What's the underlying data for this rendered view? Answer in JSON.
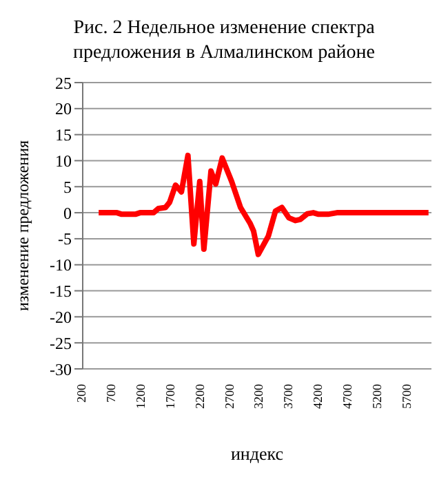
{
  "chart_data": {
    "type": "line",
    "title": "Рис. 2 Недельное изменение спектра предложения в Алмалинском районе",
    "xlabel": "индекс",
    "ylabel": "изменение предложения",
    "x": [
      470,
      780,
      860,
      1090,
      1170,
      1400,
      1480,
      1600,
      1670,
      1770,
      1870,
      1980,
      2080,
      2180,
      2250,
      2370,
      2450,
      2560,
      2720,
      2870,
      3030,
      3090,
      3170,
      3340,
      3460,
      3570,
      3690,
      3800,
      3880,
      4000,
      4100,
      4190,
      4350,
      4500,
      6050
    ],
    "series": [
      {
        "color": "#ff0000",
        "values": [
          0,
          0,
          -0.3,
          -0.3,
          0,
          0,
          0.8,
          1,
          2,
          5.3,
          4,
          11,
          -6,
          6,
          -7,
          8,
          5.5,
          10.5,
          6,
          1,
          -2,
          -3.5,
          -8,
          -4.5,
          0.3,
          1,
          -1,
          -1.5,
          -1.3,
          -0.2,
          0,
          -0.3,
          -0.3,
          0,
          0
        ]
      }
    ],
    "xlim": [
      200,
      6100
    ],
    "xticks": [
      200,
      700,
      1200,
      1700,
      2200,
      2700,
      3200,
      3700,
      4200,
      4700,
      5200,
      5700
    ],
    "ylim": [
      -30,
      25
    ],
    "yticks": [
      -30,
      -25,
      -20,
      -15,
      -10,
      -5,
      0,
      5,
      10,
      15,
      20,
      25
    ],
    "grid": "y",
    "marker": "none",
    "line_style": "solid"
  }
}
